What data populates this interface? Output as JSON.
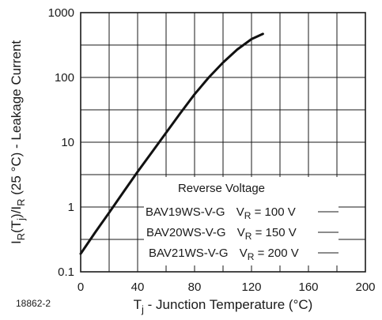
{
  "chart_data": {
    "type": "line",
    "title": "",
    "xlabel": {
      "main": "T",
      "sub": "j",
      "rest": " - Junction Temperature (°C)"
    },
    "ylabel": {
      "p1": "I",
      "s1": "R",
      "p2": "(T",
      "s2": "j",
      "p3": ")/I",
      "s3": "R",
      "p4": " (25 °C) - Leakage Current"
    },
    "xlim": [
      0,
      200
    ],
    "ylim": [
      0.1,
      1000
    ],
    "y_scale": "log",
    "grid": true,
    "x_ticks": [
      "0",
      "40",
      "80",
      "120",
      "160",
      "200"
    ],
    "y_ticks": [
      "0.1",
      "1",
      "10",
      "100",
      "1000"
    ],
    "series": [
      {
        "x": [
          0,
          10,
          20,
          30,
          40,
          50,
          60,
          70,
          80,
          90,
          100,
          110,
          120,
          128
        ],
        "y": [
          0.19,
          0.4,
          0.82,
          1.7,
          3.5,
          7.0,
          14,
          28,
          55,
          100,
          170,
          270,
          390,
          470
        ]
      }
    ],
    "legend": {
      "title": "Reverse Voltage",
      "placement": "bottom-right",
      "entries": [
        {
          "device": "BAV19WS-V-G",
          "v": "V",
          "sub": "R",
          "value": " = 100 V"
        },
        {
          "device": "BAV20WS-V-G",
          "v": "V",
          "sub": "R",
          "value": " = 150 V"
        },
        {
          "device": "BAV21WS-V-G",
          "v": "V",
          "sub": "R",
          "value": " = 200 V"
        }
      ]
    },
    "figure_id": "18862-2"
  }
}
